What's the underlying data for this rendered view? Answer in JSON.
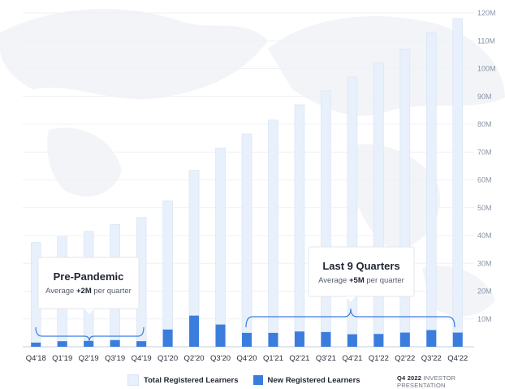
{
  "chart_data": {
    "type": "bar",
    "stacked_overlay": true,
    "categories": [
      "Q4'18",
      "Q1'19",
      "Q2'19",
      "Q3'19",
      "Q4'19",
      "Q1'20",
      "Q2'20",
      "Q3'20",
      "Q4'20",
      "Q1'21",
      "Q2'21",
      "Q3'21",
      "Q4'21",
      "Q1'22",
      "Q2'22",
      "Q3'22",
      "Q4'22"
    ],
    "series": [
      {
        "name": "Total Registered Learners",
        "color": "#e8f0fb",
        "values": [
          37.5,
          39.5,
          41.5,
          44,
          46.5,
          52.5,
          63.5,
          71.5,
          76.5,
          81.5,
          87,
          92,
          97,
          102,
          107,
          113,
          118
        ]
      },
      {
        "name": "New Registered Learners",
        "color": "#3b7ddd",
        "values": [
          1.5,
          2,
          2.1,
          2.4,
          2,
          6.2,
          11.2,
          8,
          5,
          5,
          5.5,
          5.3,
          4.5,
          4.6,
          5.1,
          6,
          5.1
        ]
      }
    ],
    "yticks": [
      "10M",
      "20M",
      "30M",
      "40M",
      "50M",
      "60M",
      "70M",
      "80M",
      "90M",
      "100M",
      "110M",
      "120M"
    ],
    "ylim": [
      0,
      120
    ],
    "y_axis_position": "right"
  },
  "callouts": {
    "pre": {
      "title": "Pre-Pandemic",
      "sub_prefix": "Average ",
      "sub_value": "+2M",
      "sub_suffix": " per quarter"
    },
    "post": {
      "title": "Last 9 Quarters",
      "sub_prefix": "Average ",
      "sub_value": "+5M",
      "sub_suffix": " per quarter"
    }
  },
  "legend": {
    "total": "Total Registered Learners",
    "new": "New Registered Learners",
    "total_color": "#e8f0fb",
    "new_color": "#3b7ddd"
  },
  "footer": {
    "period": "Q4 2022",
    "label": "INVESTOR PRESENTATION"
  }
}
